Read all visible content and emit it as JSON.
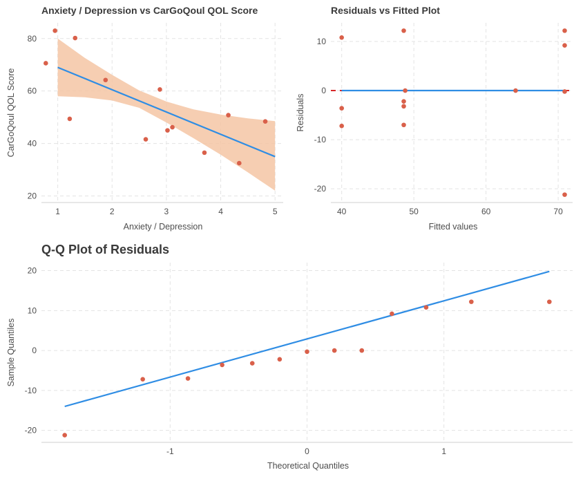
{
  "colors": {
    "points": "#d9604a",
    "fit_line": "#2f8de4",
    "ribbon": "#f5c6a5",
    "zero_ref": "#d62728",
    "grid": "#e3e3e3",
    "axis_text": "#4d4d4d"
  },
  "chart_data": [
    {
      "type": "scatter",
      "title": "Anxiety / Depression vs CarGoQoul QOL Score",
      "xlabel": "Anxiety / Depression",
      "ylabel": "CarGoQoul QOL Score",
      "xlim": [
        0.7,
        5.15
      ],
      "ylim": [
        17.5,
        86
      ],
      "x_ticks": [
        1,
        2,
        3,
        4,
        5
      ],
      "y_ticks": [
        20,
        40,
        60,
        80
      ],
      "grid": true,
      "points": [
        {
          "x": 0.78,
          "y": 70.6
        },
        {
          "x": 0.95,
          "y": 83.0
        },
        {
          "x": 1.22,
          "y": 49.4
        },
        {
          "x": 1.32,
          "y": 80.2
        },
        {
          "x": 1.88,
          "y": 64.2
        },
        {
          "x": 2.62,
          "y": 41.6
        },
        {
          "x": 2.88,
          "y": 60.6
        },
        {
          "x": 3.02,
          "y": 45.0
        },
        {
          "x": 3.11,
          "y": 46.2
        },
        {
          "x": 3.7,
          "y": 36.5
        },
        {
          "x": 4.14,
          "y": 50.8
        },
        {
          "x": 4.34,
          "y": 32.5
        },
        {
          "x": 4.82,
          "y": 48.4
        }
      ],
      "fit": {
        "x": [
          1,
          5
        ],
        "y": [
          69.0,
          35.0
        ]
      },
      "confidence_band": {
        "x": [
          1,
          1.5,
          2,
          2.5,
          3,
          3.5,
          4,
          4.5,
          5
        ],
        "lower": [
          58.0,
          57.6,
          56.4,
          53.6,
          48.0,
          42.0,
          35.7,
          29.0,
          22.0
        ],
        "upper": [
          80.0,
          72.6,
          66.2,
          60.2,
          56.0,
          53.0,
          51.0,
          49.6,
          48.5
        ]
      }
    },
    {
      "type": "scatter",
      "title": "Residuals vs Fitted Plot",
      "xlabel": "Fitted values",
      "ylabel": "Residuals",
      "xlim": [
        38.5,
        72.0
      ],
      "ylim": [
        -22.8,
        13.8
      ],
      "x_ticks": [
        40,
        50,
        60,
        70
      ],
      "y_ticks": [
        -20,
        -10,
        0,
        10
      ],
      "grid": true,
      "points": [
        {
          "x": 40.0,
          "y": 10.8
        },
        {
          "x": 40.0,
          "y": -3.6
        },
        {
          "x": 40.0,
          "y": -7.2
        },
        {
          "x": 48.6,
          "y": 12.2
        },
        {
          "x": 48.6,
          "y": -2.2
        },
        {
          "x": 48.6,
          "y": -3.2
        },
        {
          "x": 48.6,
          "y": -7.0
        },
        {
          "x": 48.8,
          "y": 0.0
        },
        {
          "x": 64.1,
          "y": 0.0
        },
        {
          "x": 70.9,
          "y": 12.2
        },
        {
          "x": 70.9,
          "y": 9.2
        },
        {
          "x": 70.9,
          "y": -0.2
        },
        {
          "x": 70.9,
          "y": -21.2
        }
      ],
      "fit": {
        "x": [
          40.0,
          71.0
        ],
        "y": [
          0,
          0
        ]
      },
      "reference_line": {
        "y": 0,
        "style": "dashed"
      }
    },
    {
      "type": "scatter",
      "title": "Q-Q Plot of Residuals",
      "xlabel": "Theoretical Quantiles",
      "ylabel": "Sample Quantiles",
      "xlim": [
        -1.94,
        1.94
      ],
      "ylim": [
        -23.0,
        22.0
      ],
      "x_ticks": [
        -1,
        0,
        1
      ],
      "y_ticks": [
        -20,
        -10,
        0,
        10,
        20
      ],
      "grid": true,
      "points": [
        {
          "x": -1.77,
          "y": -21.2
        },
        {
          "x": -1.2,
          "y": -7.2
        },
        {
          "x": -0.87,
          "y": -7.0
        },
        {
          "x": -0.62,
          "y": -3.6
        },
        {
          "x": -0.4,
          "y": -3.2
        },
        {
          "x": -0.2,
          "y": -2.2
        },
        {
          "x": 0.0,
          "y": -0.3
        },
        {
          "x": 0.2,
          "y": 0.0
        },
        {
          "x": 0.4,
          "y": 0.0
        },
        {
          "x": 0.62,
          "y": 9.2
        },
        {
          "x": 0.87,
          "y": 10.8
        },
        {
          "x": 1.2,
          "y": 12.2
        },
        {
          "x": 1.77,
          "y": 12.2
        }
      ],
      "fit": {
        "x": [
          -1.77,
          1.77
        ],
        "y": [
          -14.0,
          19.8
        ]
      }
    }
  ]
}
